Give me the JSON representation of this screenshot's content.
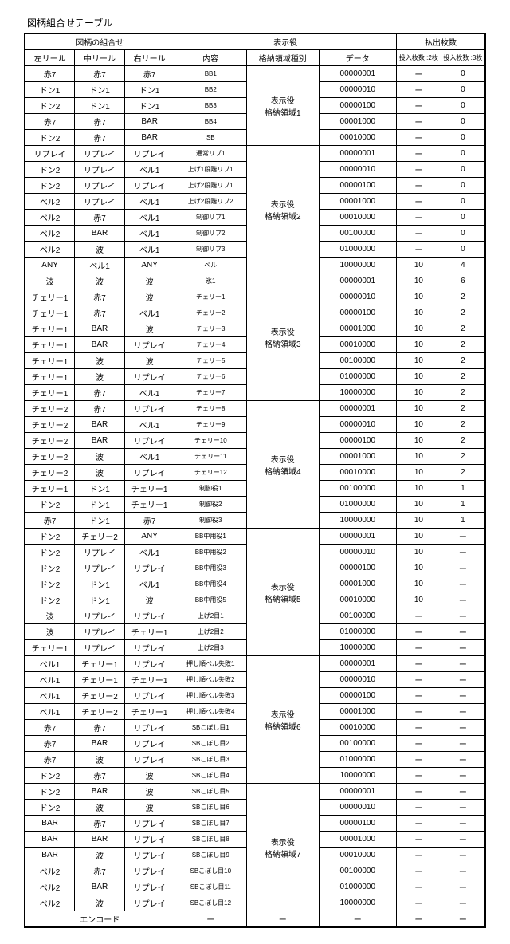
{
  "title": "図柄組合せテーブル",
  "headers": {
    "group_combo": "図柄の組合せ",
    "group_display": "表示役",
    "group_payout": "払出枚数",
    "left": "左リール",
    "mid": "中リール",
    "right": "右リール",
    "content": "内容",
    "area": "格納領域種別",
    "data": "データ",
    "pay2": "投入枚数\n:2枚",
    "pay3": "投入枚数\n:3枚"
  },
  "areas": [
    {
      "label": "表示役\n格納領域1",
      "rows": [
        {
          "l": "赤7",
          "m": "赤7",
          "r": "赤7",
          "c": "BB1",
          "d": "00000001",
          "p2": "ー",
          "p3": "0"
        },
        {
          "l": "ドン1",
          "m": "ドン1",
          "r": "ドン1",
          "c": "BB2",
          "d": "00000010",
          "p2": "ー",
          "p3": "0"
        },
        {
          "l": "ドン2",
          "m": "ドン1",
          "r": "ドン1",
          "c": "BB3",
          "d": "00000100",
          "p2": "ー",
          "p3": "0"
        },
        {
          "l": "赤7",
          "m": "赤7",
          "r": "BAR",
          "c": "BB4",
          "d": "00001000",
          "p2": "ー",
          "p3": "0"
        },
        {
          "l": "ドン2",
          "m": "赤7",
          "r": "BAR",
          "c": "SB",
          "d": "00010000",
          "p2": "ー",
          "p3": "0"
        }
      ]
    },
    {
      "label": "表示役\n格納領域2",
      "rows": [
        {
          "l": "リプレイ",
          "m": "リプレイ",
          "r": "リプレイ",
          "c": "通常リプ1",
          "d": "00000001",
          "p2": "ー",
          "p3": "0"
        },
        {
          "l": "ドン2",
          "m": "リプレイ",
          "r": "ベル1",
          "c": "上げ1段階リプ1",
          "d": "00000010",
          "p2": "ー",
          "p3": "0"
        },
        {
          "l": "ドン2",
          "m": "リプレイ",
          "r": "リプレイ",
          "c": "上げ2段階リプ1",
          "d": "00000100",
          "p2": "ー",
          "p3": "0"
        },
        {
          "l": "ベル2",
          "m": "リプレイ",
          "r": "ベル1",
          "c": "上げ2段階リプ2",
          "d": "00001000",
          "p2": "ー",
          "p3": "0"
        },
        {
          "l": "ベル2",
          "m": "赤7",
          "r": "ベル1",
          "c": "制御リプ1",
          "d": "00010000",
          "p2": "ー",
          "p3": "0"
        },
        {
          "l": "ベル2",
          "m": "BAR",
          "r": "ベル1",
          "c": "制御リプ2",
          "d": "00100000",
          "p2": "ー",
          "p3": "0"
        },
        {
          "l": "ベル2",
          "m": "波",
          "r": "ベル1",
          "c": "制御リプ3",
          "d": "01000000",
          "p2": "ー",
          "p3": "0"
        },
        {
          "l": "ANY",
          "m": "ベル1",
          "r": "ANY",
          "c": "ベル",
          "d": "10000000",
          "p2": "10",
          "p3": "4"
        }
      ]
    },
    {
      "label": "表示役\n格納領域3",
      "rows": [
        {
          "l": "波",
          "m": "波",
          "r": "波",
          "c": "氷1",
          "d": "00000001",
          "p2": "10",
          "p3": "6"
        },
        {
          "l": "チェリー1",
          "m": "赤7",
          "r": "波",
          "c": "チェリー1",
          "d": "00000010",
          "p2": "10",
          "p3": "2"
        },
        {
          "l": "チェリー1",
          "m": "赤7",
          "r": "ベル1",
          "c": "チェリー2",
          "d": "00000100",
          "p2": "10",
          "p3": "2"
        },
        {
          "l": "チェリー1",
          "m": "BAR",
          "r": "波",
          "c": "チェリー3",
          "d": "00001000",
          "p2": "10",
          "p3": "2"
        },
        {
          "l": "チェリー1",
          "m": "BAR",
          "r": "リプレイ",
          "c": "チェリー4",
          "d": "00010000",
          "p2": "10",
          "p3": "2"
        },
        {
          "l": "チェリー1",
          "m": "波",
          "r": "波",
          "c": "チェリー5",
          "d": "00100000",
          "p2": "10",
          "p3": "2"
        },
        {
          "l": "チェリー1",
          "m": "波",
          "r": "リプレイ",
          "c": "チェリー6",
          "d": "01000000",
          "p2": "10",
          "p3": "2"
        },
        {
          "l": "チェリー1",
          "m": "赤7",
          "r": "ベル1",
          "c": "チェリー7",
          "d": "10000000",
          "p2": "10",
          "p3": "2"
        }
      ]
    },
    {
      "label": "表示役\n格納領域4",
      "rows": [
        {
          "l": "チェリー2",
          "m": "赤7",
          "r": "リプレイ",
          "c": "チェリー8",
          "d": "00000001",
          "p2": "10",
          "p3": "2"
        },
        {
          "l": "チェリー2",
          "m": "BAR",
          "r": "ベル1",
          "c": "チェリー9",
          "d": "00000010",
          "p2": "10",
          "p3": "2"
        },
        {
          "l": "チェリー2",
          "m": "BAR",
          "r": "リプレイ",
          "c": "チェリー10",
          "d": "00000100",
          "p2": "10",
          "p3": "2"
        },
        {
          "l": "チェリー2",
          "m": "波",
          "r": "ベル1",
          "c": "チェリー11",
          "d": "00001000",
          "p2": "10",
          "p3": "2"
        },
        {
          "l": "チェリー2",
          "m": "波",
          "r": "リプレイ",
          "c": "チェリー12",
          "d": "00010000",
          "p2": "10",
          "p3": "2"
        },
        {
          "l": "チェリー1",
          "m": "ドン1",
          "r": "チェリー1",
          "c": "制御役1",
          "d": "00100000",
          "p2": "10",
          "p3": "1"
        },
        {
          "l": "ドン2",
          "m": "ドン1",
          "r": "チェリー1",
          "c": "制御役2",
          "d": "01000000",
          "p2": "10",
          "p3": "1"
        },
        {
          "l": "赤7",
          "m": "ドン1",
          "r": "赤7",
          "c": "制御役3",
          "d": "10000000",
          "p2": "10",
          "p3": "1"
        }
      ]
    },
    {
      "label": "表示役\n格納領域5",
      "rows": [
        {
          "l": "ドン2",
          "m": "チェリー2",
          "r": "ANY",
          "c": "BB中用役1",
          "d": "00000001",
          "p2": "10",
          "p3": "ー"
        },
        {
          "l": "ドン2",
          "m": "リプレイ",
          "r": "ベル1",
          "c": "BB中用役2",
          "d": "00000010",
          "p2": "10",
          "p3": "ー"
        },
        {
          "l": "ドン2",
          "m": "リプレイ",
          "r": "リプレイ",
          "c": "BB中用役3",
          "d": "00000100",
          "p2": "10",
          "p3": "ー"
        },
        {
          "l": "ドン2",
          "m": "ドン1",
          "r": "ベル1",
          "c": "BB中用役4",
          "d": "00001000",
          "p2": "10",
          "p3": "ー"
        },
        {
          "l": "ドン2",
          "m": "ドン1",
          "r": "波",
          "c": "BB中用役5",
          "d": "00010000",
          "p2": "10",
          "p3": "ー"
        },
        {
          "l": "波",
          "m": "リプレイ",
          "r": "リプレイ",
          "c": "上げ2目1",
          "d": "00100000",
          "p2": "ー",
          "p3": "ー"
        },
        {
          "l": "波",
          "m": "リプレイ",
          "r": "チェリー1",
          "c": "上げ2目2",
          "d": "01000000",
          "p2": "ー",
          "p3": "ー"
        },
        {
          "l": "チェリー1",
          "m": "リプレイ",
          "r": "リプレイ",
          "c": "上げ2目3",
          "d": "10000000",
          "p2": "ー",
          "p3": "ー"
        }
      ]
    },
    {
      "label": "表示役\n格納領域6",
      "rows": [
        {
          "l": "ベル1",
          "m": "チェリー1",
          "r": "リプレイ",
          "c": "押し順ベル失敗1",
          "d": "00000001",
          "p2": "ー",
          "p3": "ー"
        },
        {
          "l": "ベル1",
          "m": "チェリー1",
          "r": "チェリー1",
          "c": "押し順ベル失敗2",
          "d": "00000010",
          "p2": "ー",
          "p3": "ー"
        },
        {
          "l": "ベル1",
          "m": "チェリー2",
          "r": "リプレイ",
          "c": "押し順ベル失敗3",
          "d": "00000100",
          "p2": "ー",
          "p3": "ー"
        },
        {
          "l": "ベル1",
          "m": "チェリー2",
          "r": "チェリー1",
          "c": "押し順ベル失敗4",
          "d": "00001000",
          "p2": "ー",
          "p3": "ー"
        },
        {
          "l": "赤7",
          "m": "赤7",
          "r": "リプレイ",
          "c": "SBこぼし目1",
          "d": "00010000",
          "p2": "ー",
          "p3": "ー"
        },
        {
          "l": "赤7",
          "m": "BAR",
          "r": "リプレイ",
          "c": "SBこぼし目2",
          "d": "00100000",
          "p2": "ー",
          "p3": "ー"
        },
        {
          "l": "赤7",
          "m": "波",
          "r": "リプレイ",
          "c": "SBこぼし目3",
          "d": "01000000",
          "p2": "ー",
          "p3": "ー"
        },
        {
          "l": "ドン2",
          "m": "赤7",
          "r": "波",
          "c": "SBこぼし目4",
          "d": "10000000",
          "p2": "ー",
          "p3": "ー"
        }
      ]
    },
    {
      "label": "表示役\n格納領域7",
      "rows": [
        {
          "l": "ドン2",
          "m": "BAR",
          "r": "波",
          "c": "SBこぼし目5",
          "d": "00000001",
          "p2": "ー",
          "p3": "ー"
        },
        {
          "l": "ドン2",
          "m": "波",
          "r": "波",
          "c": "SBこぼし目6",
          "d": "00000010",
          "p2": "ー",
          "p3": "ー"
        },
        {
          "l": "BAR",
          "m": "赤7",
          "r": "リプレイ",
          "c": "SBこぼし目7",
          "d": "00000100",
          "p2": "ー",
          "p3": "ー"
        },
        {
          "l": "BAR",
          "m": "BAR",
          "r": "リプレイ",
          "c": "SBこぼし目8",
          "d": "00001000",
          "p2": "ー",
          "p3": "ー"
        },
        {
          "l": "BAR",
          "m": "波",
          "r": "リプレイ",
          "c": "SBこぼし目9",
          "d": "00010000",
          "p2": "ー",
          "p3": "ー"
        },
        {
          "l": "ベル2",
          "m": "赤7",
          "r": "リプレイ",
          "c": "SBこぼし目10",
          "d": "00100000",
          "p2": "ー",
          "p3": "ー"
        },
        {
          "l": "ベル2",
          "m": "BAR",
          "r": "リプレイ",
          "c": "SBこぼし目11",
          "d": "01000000",
          "p2": "ー",
          "p3": "ー"
        },
        {
          "l": "ベル2",
          "m": "波",
          "r": "リプレイ",
          "c": "SBこぼし目12",
          "d": "10000000",
          "p2": "ー",
          "p3": "ー"
        }
      ]
    }
  ],
  "footer": {
    "encode": "エンコード",
    "dash": "ー"
  }
}
